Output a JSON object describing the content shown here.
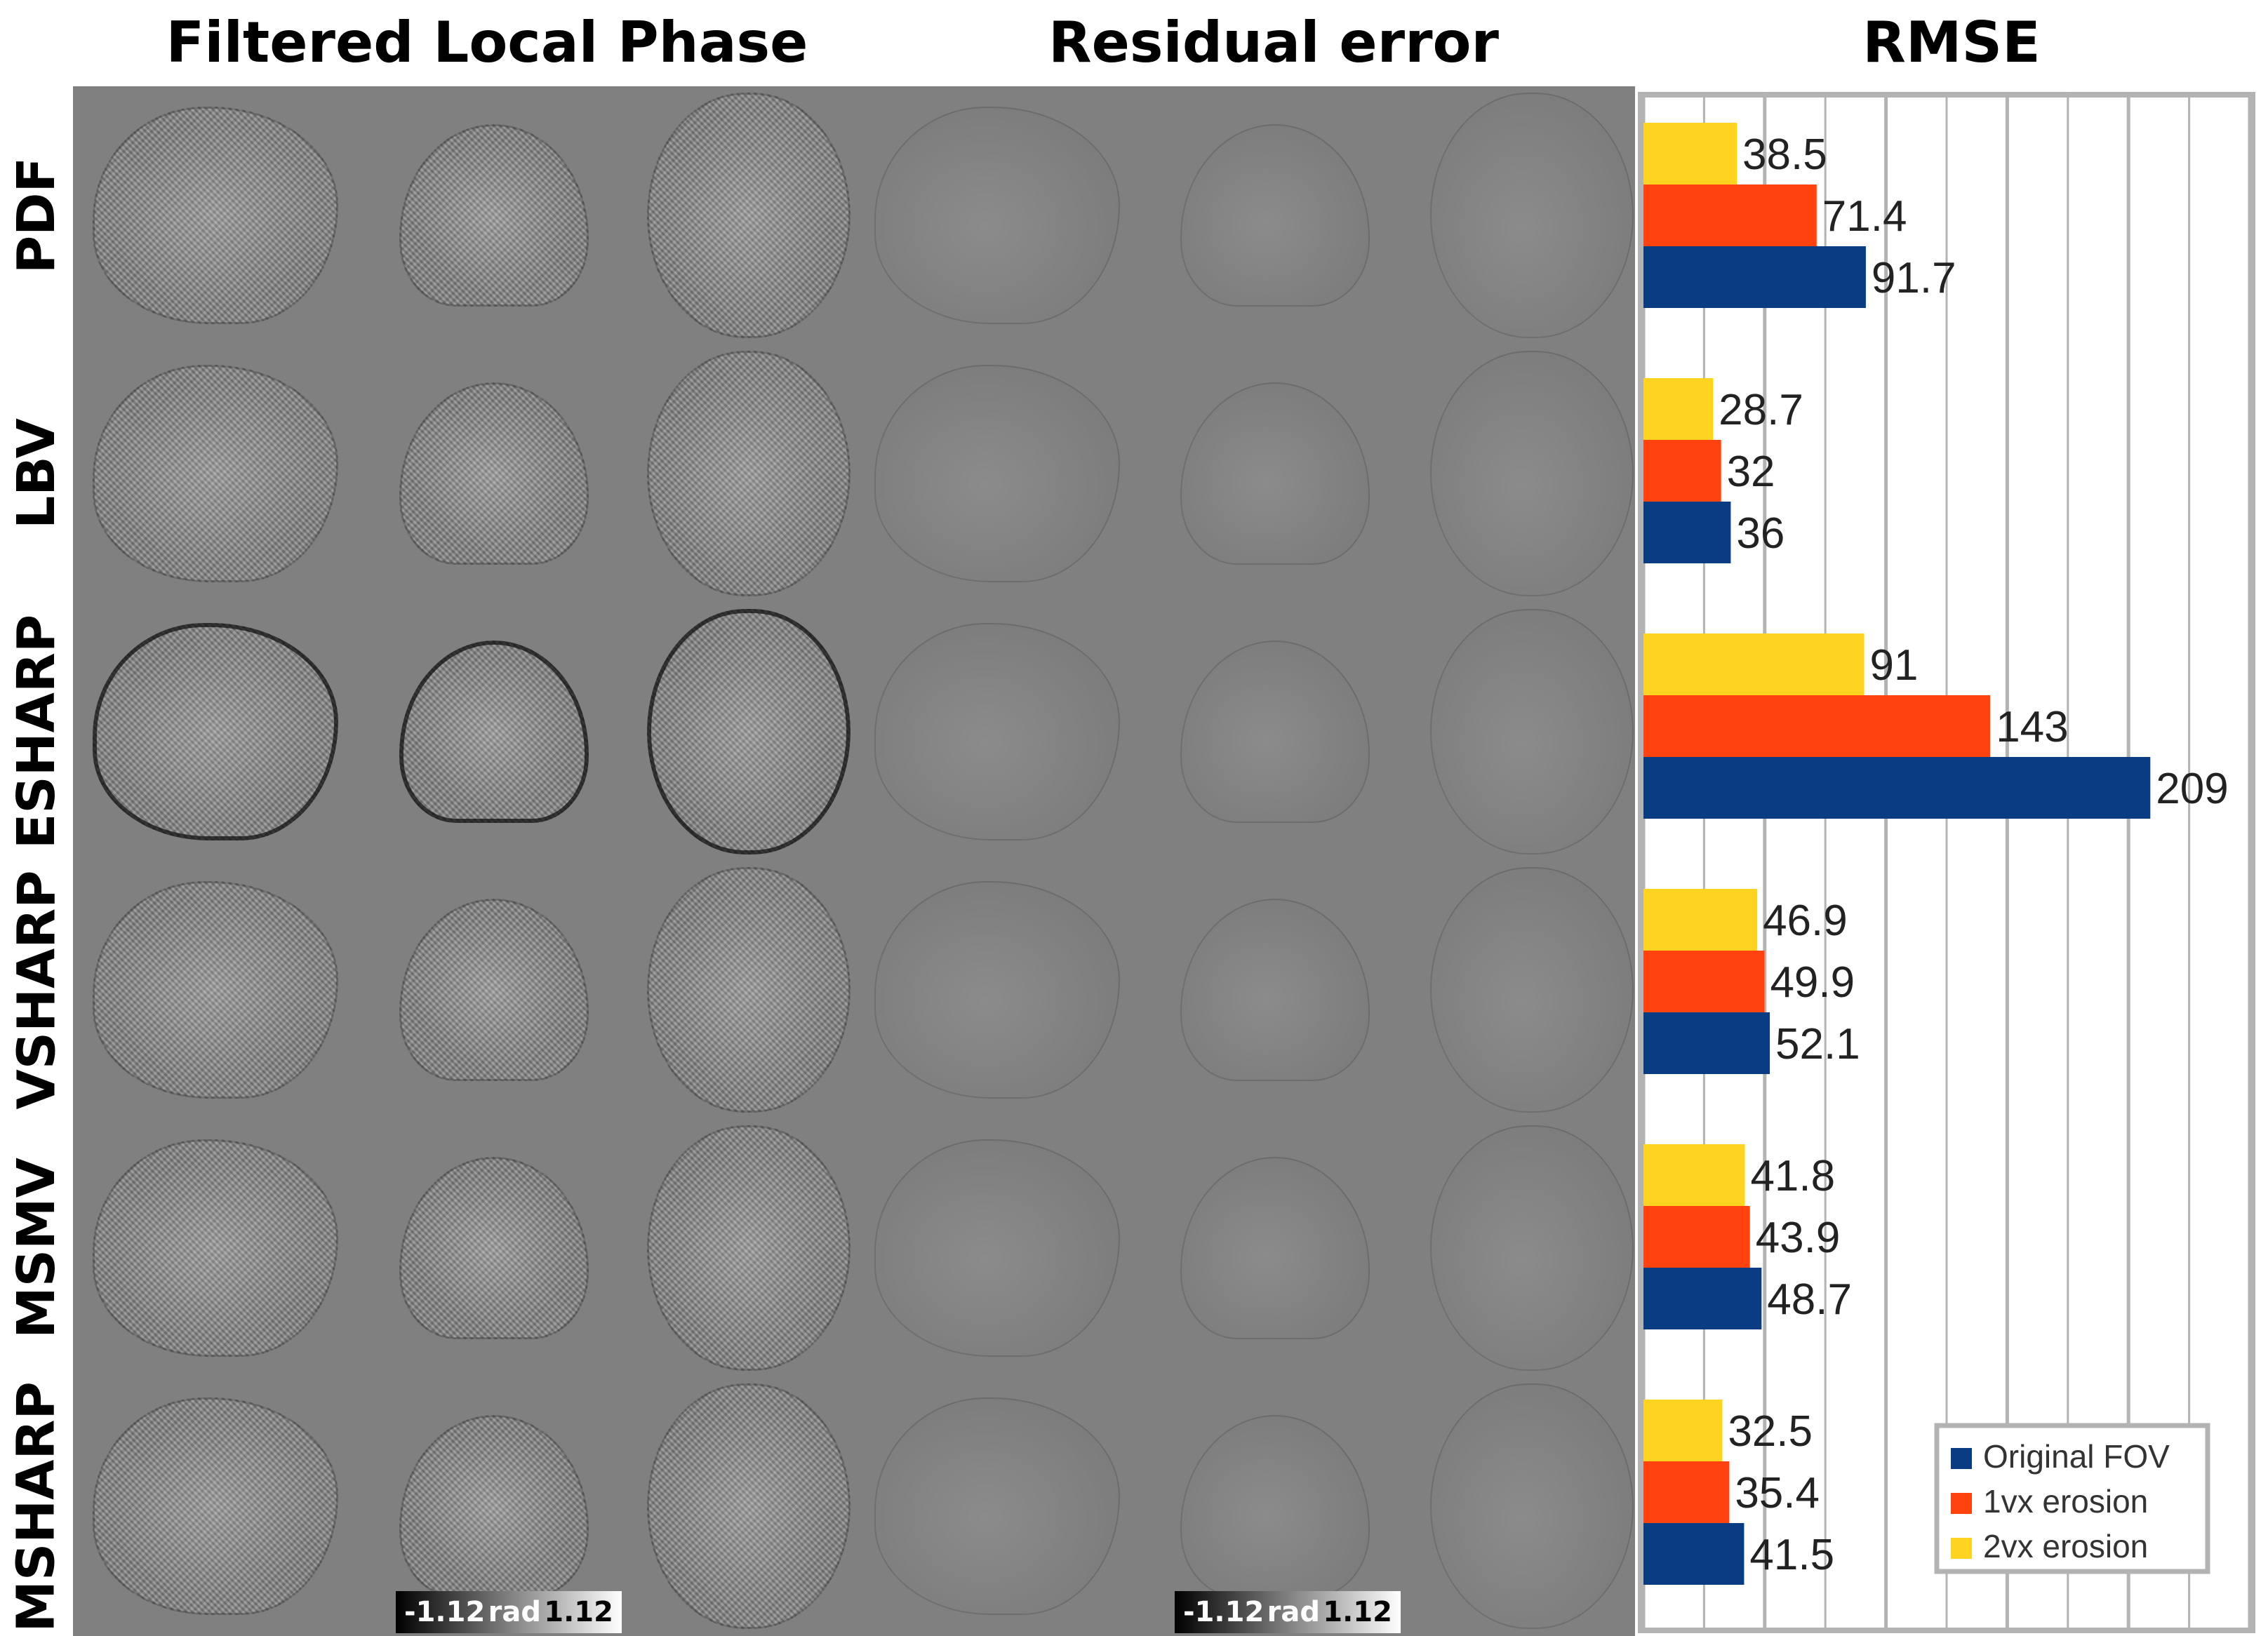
{
  "headings": {
    "filtered_local_phase": "Filtered Local Phase",
    "residual_error": "Residual error",
    "rmse": "RMSE"
  },
  "rows": [
    "PDF",
    "LBV",
    "ESHARP",
    "VSHARP",
    "MSMV",
    "MSHARP"
  ],
  "colorbars": [
    {
      "min": "-1.12",
      "unit": "rad",
      "max": "1.12"
    },
    {
      "min": "-1.12",
      "unit": "rad",
      "max": "1.12"
    }
  ],
  "colors": {
    "original_fov": "#0a3c84",
    "erosion_1vx": "#ff420e",
    "erosion_2vx": "#ffd320",
    "panel_gray": "#808080",
    "grid": "#b3b3b3"
  },
  "chart_data": {
    "type": "bar",
    "orientation": "horizontal",
    "title": "RMSE",
    "categories": [
      "PDF",
      "LBV",
      "ESHARP",
      "VSHARP",
      "MSMV",
      "MSHARP"
    ],
    "series": [
      {
        "name": "2vx erosion",
        "color": "#ffd320",
        "values": [
          38.5,
          28.7,
          91,
          46.9,
          41.8,
          32.5
        ]
      },
      {
        "name": "1vx erosion",
        "color": "#ff420e",
        "values": [
          71.4,
          32,
          143,
          49.9,
          43.9,
          35.4
        ]
      },
      {
        "name": "Original FOV",
        "color": "#0a3c84",
        "values": [
          91.7,
          36,
          209,
          52.1,
          48.7,
          41.5
        ]
      }
    ],
    "value_labels": [
      [
        "38.5",
        "28.7",
        "91",
        "46.9",
        "41.8",
        "32.5"
      ],
      [
        "71.4",
        "32",
        "143",
        "49.9",
        "43.9",
        "35.4"
      ],
      [
        "91.7",
        "36",
        "209",
        "52.1",
        "48.7",
        "41.5"
      ]
    ],
    "legend": {
      "position": "bottom-right",
      "entries": [
        "Original FOV",
        "1vx erosion",
        "2vx erosion"
      ]
    },
    "xlim": [
      0,
      250
    ],
    "grid": true
  }
}
